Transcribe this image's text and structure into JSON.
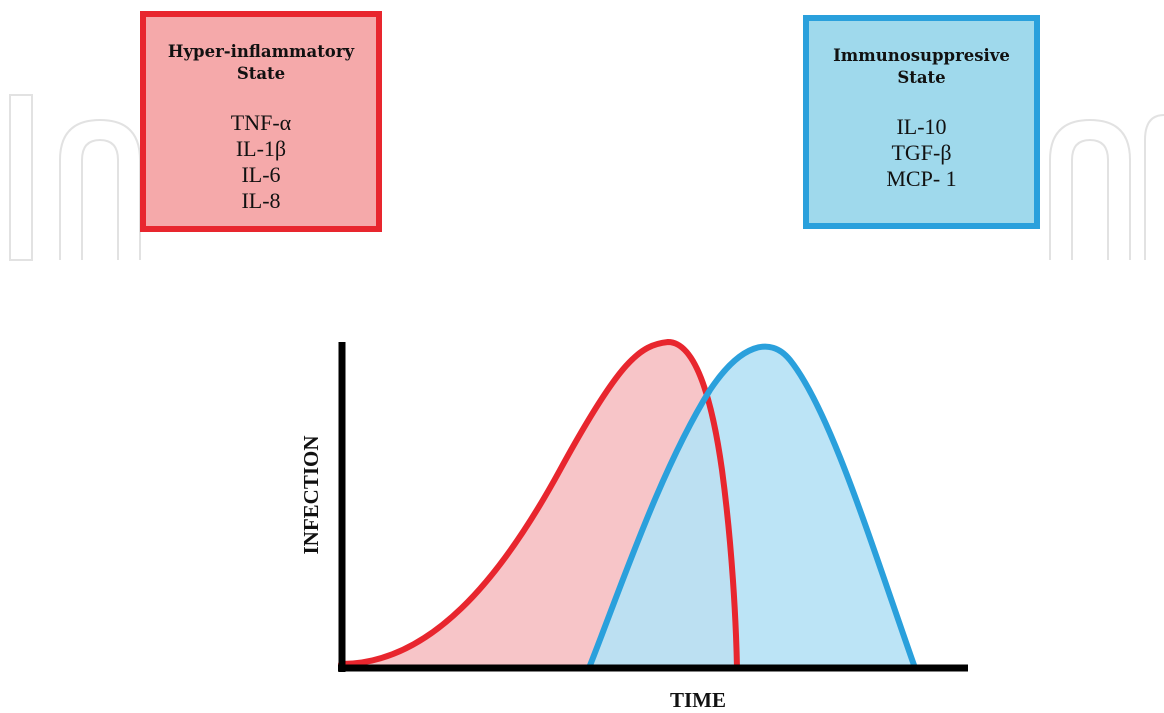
{
  "boxes": {
    "hyper": {
      "title_line1": "Hyper-inflammatory",
      "title_line2": "State",
      "items": [
        "TNF-α",
        "IL-1β",
        "IL-6",
        "IL-8"
      ],
      "border_color": "#e8262e",
      "fill_color": "#f5a9aa"
    },
    "immuno": {
      "title_line1": "Immunosuppresive",
      "title_line2": "State",
      "items": [
        "IL-10",
        "TGF-β",
        "MCP- 1"
      ],
      "border_color": "#2aa0dc",
      "fill_color": "#9fd9ec"
    }
  },
  "chart": {
    "y_axis_label": "INFECTION",
    "x_axis_label": "TIME",
    "curves": [
      {
        "color": "#e8262e",
        "fill": "#f7c5c8",
        "shape": "right-skewed peak, rising early and dropping sharply"
      },
      {
        "color": "#2aa0dc",
        "fill": "#b6e2f5",
        "shape": "symmetric peak, rising later and falling gradually"
      }
    ]
  },
  "watermark": {
    "color": "#e4e4e4"
  }
}
